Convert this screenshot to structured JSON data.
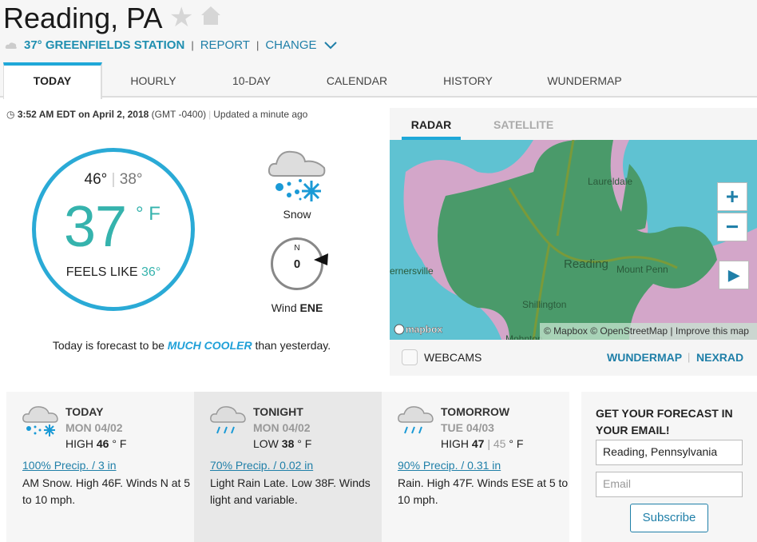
{
  "header": {
    "title": "Reading, PA",
    "station": "37° GREENFIELDS STATION",
    "report": "REPORT",
    "change": "CHANGE"
  },
  "tabs": [
    "TODAY",
    "HOURLY",
    "10-DAY",
    "CALENDAR",
    "HISTORY",
    "WUNDERMAP"
  ],
  "current": {
    "time": "3:52 AM EDT on April 2, 2018",
    "gmt": "(GMT -0400)",
    "updated": "Updated a minute ago",
    "high": "46°",
    "low": "38°",
    "temp": "37",
    "unit": "° F",
    "feels_label": "FEELS LIKE",
    "feels": "36°",
    "condition": "Snow",
    "wind_n": "N",
    "wind_speed": "0",
    "wind_label": "Wind",
    "wind_dir": "ENE",
    "forecast_pre": "Today is forecast to be",
    "forecast_em": "MUCH COOLER",
    "forecast_post": "than yesterday."
  },
  "radar": {
    "tabs": [
      "RADAR",
      "SATELLITE"
    ],
    "places": [
      "Laureldale",
      "Reading",
      "Mount Penn",
      "Shillington",
      "Mohnton",
      "ernersville"
    ],
    "mapbox": "mapbox",
    "attribution": "© Mapbox © OpenStreetMap | Improve this map",
    "webcams": "WEBCAMS",
    "wundermap": "WUNDERMAP",
    "nexrad": "NEXRAD",
    "zoom_in": "+",
    "zoom_out": "−",
    "play": "▶"
  },
  "cards": [
    {
      "title": "TODAY",
      "date": "MON 04/02",
      "hl_label": "HIGH",
      "temp": "46",
      "temp2": "",
      "unit": "° F",
      "precip": "100% Precip. / 3 in",
      "text": "AM Snow. High 46F. Winds N at 5 to 10 mph.",
      "icon": "snow-icon"
    },
    {
      "title": "TONIGHT",
      "date": "MON 04/02",
      "hl_label": "LOW",
      "temp": "38",
      "temp2": "",
      "unit": "° F",
      "precip": "70% Precip. / 0.02 in",
      "text": "Light Rain Late. Low 38F. Winds light and variable.",
      "icon": "rain-icon"
    },
    {
      "title": "TOMORROW",
      "date": "TUE 04/03",
      "hl_label": "HIGH",
      "temp": "47",
      "temp2": "| 45",
      "unit": "° F",
      "precip": "90% Precip. / 0.31 in",
      "text": "Rain. High 47F. Winds ESE at 5 to 10 mph.",
      "icon": "rain-icon"
    }
  ],
  "email": {
    "title": "GET YOUR FORECAST IN YOUR EMAIL!",
    "location": "Reading, Pennsylvania",
    "email_placeholder": "Email",
    "subscribe": "Subscribe"
  },
  "colors": {
    "accent": "#1fa8d8",
    "temp": "#35b3ad",
    "link": "#1f7fa8"
  }
}
